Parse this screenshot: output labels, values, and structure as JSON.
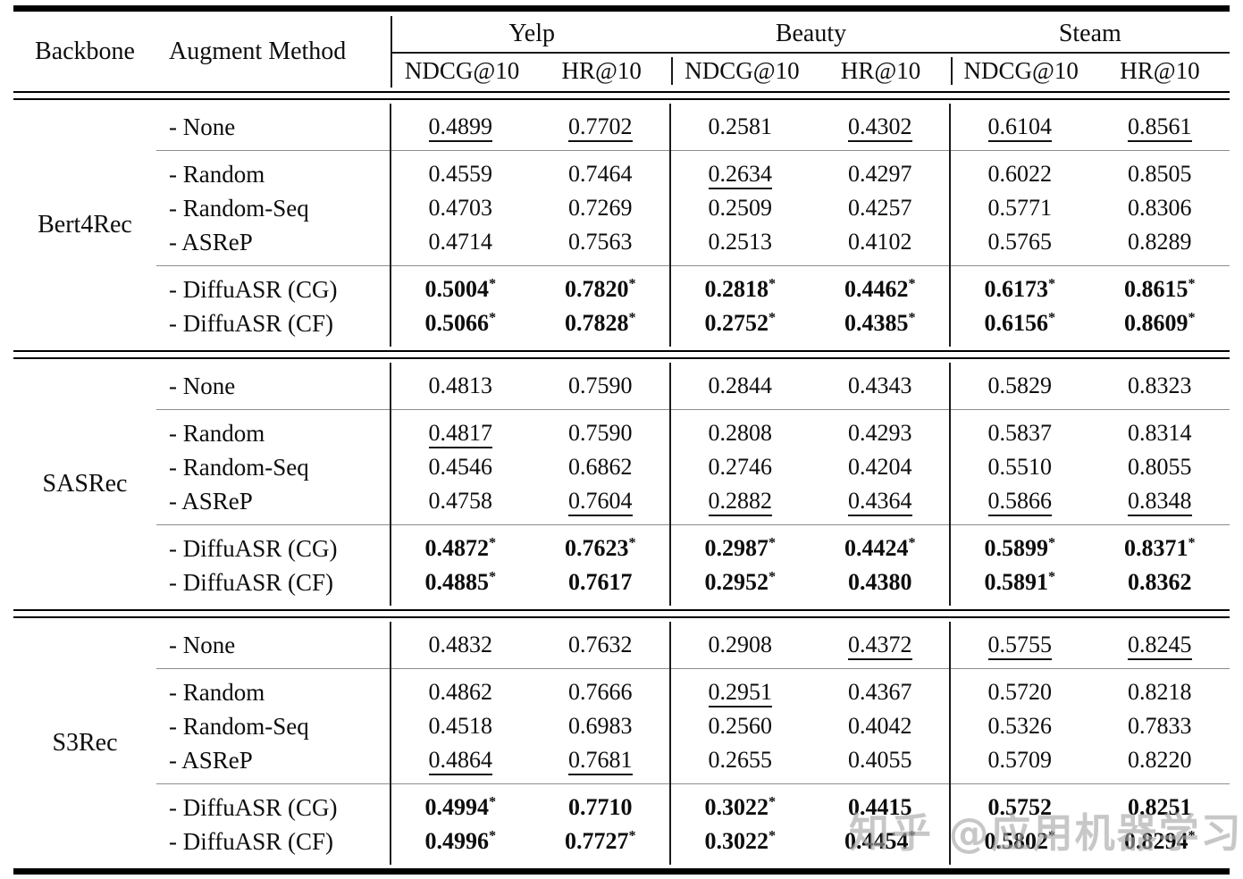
{
  "header": {
    "backbone": "Backbone",
    "augment_method": "Augment Method",
    "groups": [
      {
        "name": "Yelp",
        "metrics": [
          "NDCG@10",
          "HR@10"
        ]
      },
      {
        "name": "Beauty",
        "metrics": [
          "NDCG@10",
          "HR@10"
        ]
      },
      {
        "name": "Steam",
        "metrics": [
          "NDCG@10",
          "HR@10"
        ]
      }
    ]
  },
  "sections": [
    {
      "backbone": "Bert4Rec",
      "blocks": [
        {
          "rows": [
            {
              "method": "- None",
              "cells": [
                {
                  "text": "0.4899",
                  "underline": true
                },
                {
                  "text": "0.7702",
                  "underline": true
                },
                {
                  "text": "0.2581"
                },
                {
                  "text": "0.4302",
                  "underline": true
                },
                {
                  "text": "0.6104",
                  "underline": true
                },
                {
                  "text": "0.8561",
                  "underline": true
                }
              ]
            }
          ]
        },
        {
          "rows": [
            {
              "method": "- Random",
              "cells": [
                {
                  "text": "0.4559"
                },
                {
                  "text": "0.7464"
                },
                {
                  "text": "0.2634",
                  "underline": true
                },
                {
                  "text": "0.4297"
                },
                {
                  "text": "0.6022"
                },
                {
                  "text": "0.8505"
                }
              ]
            },
            {
              "method": "- Random-Seq",
              "cells": [
                {
                  "text": "0.4703"
                },
                {
                  "text": "0.7269"
                },
                {
                  "text": "0.2509"
                },
                {
                  "text": "0.4257"
                },
                {
                  "text": "0.5771"
                },
                {
                  "text": "0.8306"
                }
              ]
            },
            {
              "method": "- ASReP",
              "cells": [
                {
                  "text": "0.4714"
                },
                {
                  "text": "0.7563"
                },
                {
                  "text": "0.2513"
                },
                {
                  "text": "0.4102"
                },
                {
                  "text": "0.5765"
                },
                {
                  "text": "0.8289"
                }
              ]
            }
          ]
        },
        {
          "rows": [
            {
              "method": "- DiffuASR (CG)",
              "cells": [
                {
                  "text": "0.5004",
                  "bold": true,
                  "star": true
                },
                {
                  "text": "0.7820",
                  "bold": true,
                  "star": true
                },
                {
                  "text": "0.2818",
                  "bold": true,
                  "star": true
                },
                {
                  "text": "0.4462",
                  "bold": true,
                  "star": true
                },
                {
                  "text": "0.6173",
                  "bold": true,
                  "star": true
                },
                {
                  "text": "0.8615",
                  "bold": true,
                  "star": true
                }
              ]
            },
            {
              "method": "- DiffuASR (CF)",
              "cells": [
                {
                  "text": "0.5066",
                  "bold": true,
                  "star": true
                },
                {
                  "text": "0.7828",
                  "bold": true,
                  "star": true
                },
                {
                  "text": "0.2752",
                  "bold": true,
                  "star": true
                },
                {
                  "text": "0.4385",
                  "bold": true,
                  "star": true
                },
                {
                  "text": "0.6156",
                  "bold": true,
                  "star": true
                },
                {
                  "text": "0.8609",
                  "bold": true,
                  "star": true
                }
              ]
            }
          ]
        }
      ]
    },
    {
      "backbone": "SASRec",
      "blocks": [
        {
          "rows": [
            {
              "method": "- None",
              "cells": [
                {
                  "text": "0.4813"
                },
                {
                  "text": "0.7590"
                },
                {
                  "text": "0.2844"
                },
                {
                  "text": "0.4343"
                },
                {
                  "text": "0.5829"
                },
                {
                  "text": "0.8323"
                }
              ]
            }
          ]
        },
        {
          "rows": [
            {
              "method": "- Random",
              "cells": [
                {
                  "text": "0.4817",
                  "underline": true
                },
                {
                  "text": "0.7590"
                },
                {
                  "text": "0.2808"
                },
                {
                  "text": "0.4293"
                },
                {
                  "text": "0.5837"
                },
                {
                  "text": "0.8314"
                }
              ]
            },
            {
              "method": "- Random-Seq",
              "cells": [
                {
                  "text": "0.4546"
                },
                {
                  "text": "0.6862"
                },
                {
                  "text": "0.2746"
                },
                {
                  "text": "0.4204"
                },
                {
                  "text": "0.5510"
                },
                {
                  "text": "0.8055"
                }
              ]
            },
            {
              "method": "- ASReP",
              "cells": [
                {
                  "text": "0.4758"
                },
                {
                  "text": "0.7604",
                  "underline": true
                },
                {
                  "text": "0.2882",
                  "underline": true
                },
                {
                  "text": "0.4364",
                  "underline": true
                },
                {
                  "text": "0.5866",
                  "underline": true
                },
                {
                  "text": "0.8348",
                  "underline": true
                }
              ]
            }
          ]
        },
        {
          "rows": [
            {
              "method": "- DiffuASR (CG)",
              "cells": [
                {
                  "text": "0.4872",
                  "bold": true,
                  "star": true
                },
                {
                  "text": "0.7623",
                  "bold": true,
                  "star": true
                },
                {
                  "text": "0.2987",
                  "bold": true,
                  "star": true
                },
                {
                  "text": "0.4424",
                  "bold": true,
                  "star": true
                },
                {
                  "text": "0.5899",
                  "bold": true,
                  "star": true
                },
                {
                  "text": "0.8371",
                  "bold": true,
                  "star": true
                }
              ]
            },
            {
              "method": "- DiffuASR (CF)",
              "cells": [
                {
                  "text": "0.4885",
                  "bold": true,
                  "star": true
                },
                {
                  "text": "0.7617",
                  "bold": true
                },
                {
                  "text": "0.2952",
                  "bold": true,
                  "star": true
                },
                {
                  "text": "0.4380",
                  "bold": true
                },
                {
                  "text": "0.5891",
                  "bold": true,
                  "star": true
                },
                {
                  "text": "0.8362",
                  "bold": true
                }
              ]
            }
          ]
        }
      ]
    },
    {
      "backbone": "S3Rec",
      "blocks": [
        {
          "rows": [
            {
              "method": "- None",
              "cells": [
                {
                  "text": "0.4832"
                },
                {
                  "text": "0.7632"
                },
                {
                  "text": "0.2908"
                },
                {
                  "text": "0.4372",
                  "underline": true
                },
                {
                  "text": "0.5755",
                  "underline": true
                },
                {
                  "text": "0.8245",
                  "underline": true
                }
              ]
            }
          ]
        },
        {
          "rows": [
            {
              "method": "- Random",
              "cells": [
                {
                  "text": "0.4862"
                },
                {
                  "text": "0.7666"
                },
                {
                  "text": "0.2951",
                  "underline": true
                },
                {
                  "text": "0.4367"
                },
                {
                  "text": "0.5720"
                },
                {
                  "text": "0.8218"
                }
              ]
            },
            {
              "method": "- Random-Seq",
              "cells": [
                {
                  "text": "0.4518"
                },
                {
                  "text": "0.6983"
                },
                {
                  "text": "0.2560"
                },
                {
                  "text": "0.4042"
                },
                {
                  "text": "0.5326"
                },
                {
                  "text": "0.7833"
                }
              ]
            },
            {
              "method": "- ASReP",
              "cells": [
                {
                  "text": "0.4864",
                  "underline": true
                },
                {
                  "text": "0.7681",
                  "underline": true
                },
                {
                  "text": "0.2655"
                },
                {
                  "text": "0.4055"
                },
                {
                  "text": "0.5709"
                },
                {
                  "text": "0.8220"
                }
              ]
            }
          ]
        },
        {
          "rows": [
            {
              "method": "- DiffuASR (CG)",
              "cells": [
                {
                  "text": "0.4994",
                  "bold": true,
                  "star": true
                },
                {
                  "text": "0.7710",
                  "bold": true
                },
                {
                  "text": "0.3022",
                  "bold": true,
                  "star": true
                },
                {
                  "text": "0.4415",
                  "bold": true
                },
                {
                  "text": "0.5752",
                  "bold": true
                },
                {
                  "text": "0.8251",
                  "bold": true
                }
              ]
            },
            {
              "method": "- DiffuASR (CF)",
              "cells": [
                {
                  "text": "0.4996",
                  "bold": true,
                  "star": true
                },
                {
                  "text": "0.7727",
                  "bold": true,
                  "star": true
                },
                {
                  "text": "0.3022",
                  "bold": true,
                  "star": true
                },
                {
                  "text": "0.4454",
                  "bold": true,
                  "star": true
                },
                {
                  "text": "0.5802",
                  "bold": true,
                  "star": true
                },
                {
                  "text": "0.8294",
                  "bold": true,
                  "star": true
                }
              ]
            }
          ]
        }
      ]
    }
  ],
  "watermark": {
    "text": "知乎 @应用机器学习"
  }
}
